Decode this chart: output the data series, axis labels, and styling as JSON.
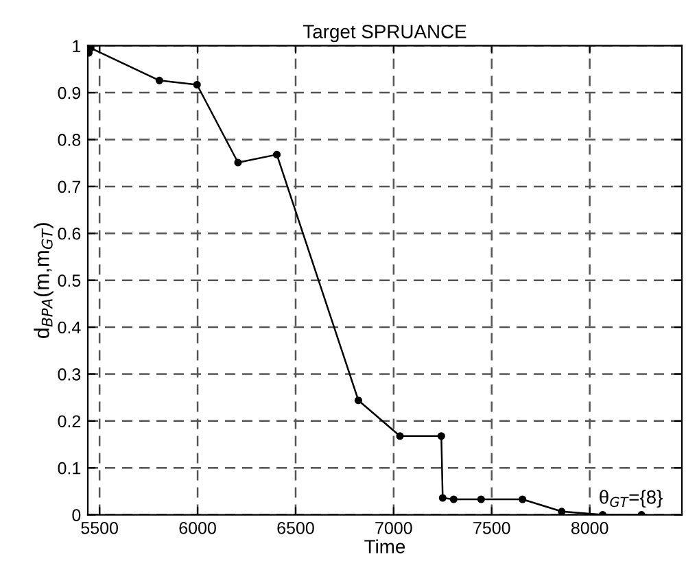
{
  "chart_data": {
    "type": "line",
    "title": "Target SPRUANCE",
    "xlabel": "Time",
    "ylabel": "d$_{BPA}$(m,m$_{GT}$)",
    "annotations": [
      "θ$_{GT}$={8}"
    ],
    "x": [
      5445,
      5455,
      5805,
      5997,
      6206,
      6404,
      6820,
      7032,
      7243,
      7250,
      7306,
      7446,
      7657,
      7857,
      8066,
      8264
    ],
    "series": [
      {
        "color": "#000000",
        "values": [
          0.985,
          0.995,
          0.926,
          0.917,
          0.751,
          0.768,
          0.244,
          0.168,
          0.168,
          0.036,
          0.033,
          0.033,
          0.033,
          0.007,
          0,
          0
        ]
      }
    ],
    "xlim": [
      5440,
      8470
    ],
    "ylim": [
      0,
      1
    ],
    "xticks": [
      5500,
      6000,
      6500,
      7000,
      7500,
      8000
    ],
    "yticks": [
      0,
      0.1,
      0.2,
      0.3,
      0.4,
      0.5,
      0.6,
      0.7,
      0.8,
      0.9,
      1
    ],
    "grid": true,
    "marker": "circle",
    "line_style": "solid",
    "legend": false
  }
}
